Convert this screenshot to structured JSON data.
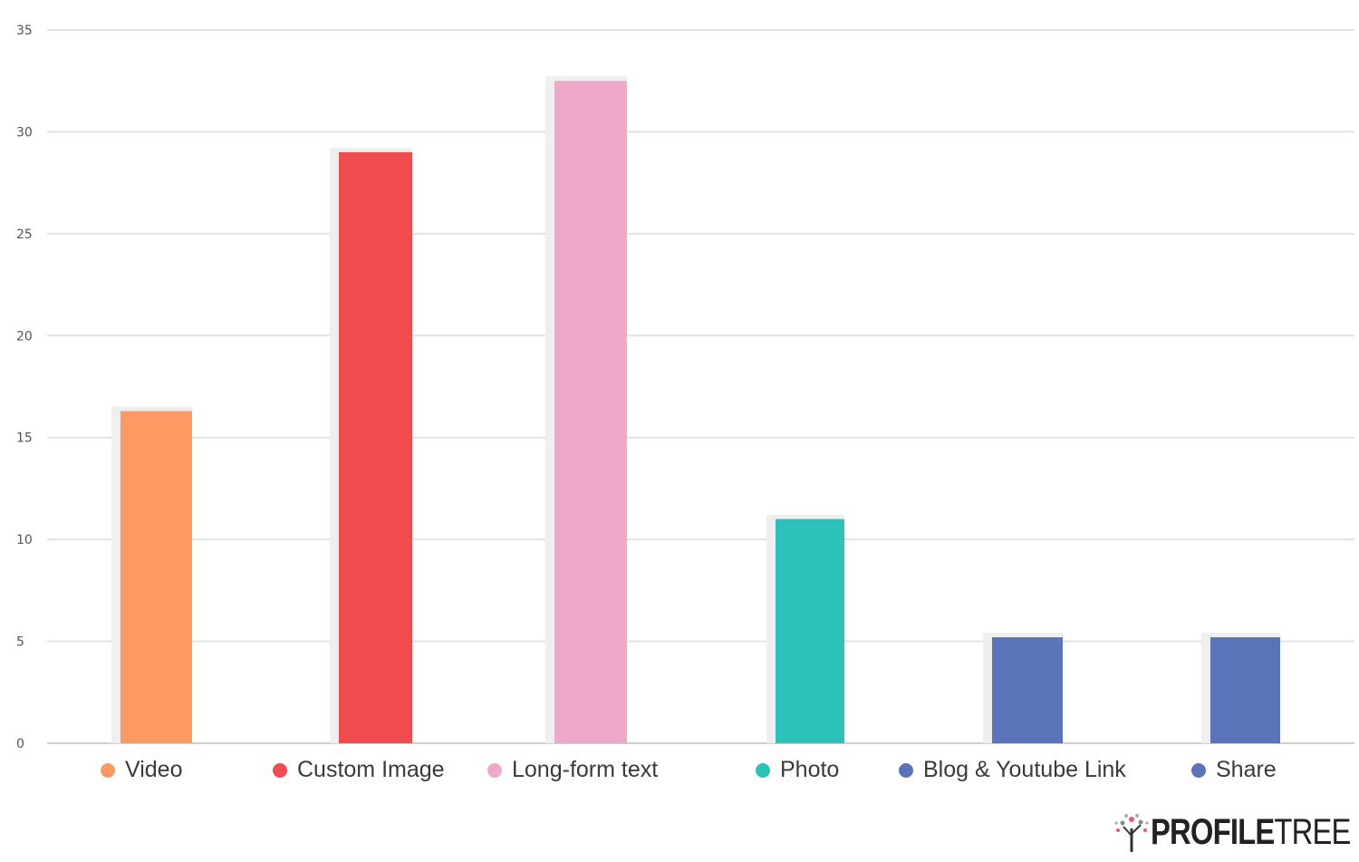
{
  "chart_data": {
    "type": "bar",
    "title": "",
    "xlabel": "",
    "ylabel": "",
    "ylim": [
      0,
      35
    ],
    "yticks": [
      0,
      5,
      10,
      15,
      20,
      25,
      30,
      35
    ],
    "grid": true,
    "legend": "bottom",
    "categories": [
      "Video",
      "Custom Image",
      "Long-form text",
      "Photo",
      "Blog & Youtube Link",
      "Share"
    ],
    "values": [
      16.3,
      29,
      32.5,
      11,
      5.2,
      5.2
    ],
    "colors": [
      "#fd9a64",
      "#f04b4e",
      "#eea9c9",
      "#2ec1bc",
      "#5b73b9",
      "#5b73b9"
    ]
  },
  "branding": {
    "logo_bold": "PROFILE",
    "logo_thin": "TREE"
  }
}
